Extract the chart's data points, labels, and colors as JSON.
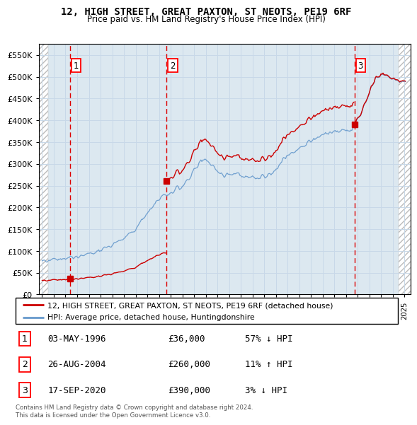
{
  "title": "12, HIGH STREET, GREAT PAXTON, ST NEOTS, PE19 6RF",
  "subtitle": "Price paid vs. HM Land Registry's House Price Index (HPI)",
  "ylabel_values": [
    0,
    50000,
    100000,
    150000,
    200000,
    250000,
    300000,
    350000,
    400000,
    450000,
    500000,
    550000
  ],
  "ylabel_labels": [
    "£0",
    "£50K",
    "£100K",
    "£150K",
    "£200K",
    "£250K",
    "£300K",
    "£350K",
    "£400K",
    "£450K",
    "£500K",
    "£550K"
  ],
  "ylim": [
    0,
    575000
  ],
  "xlim_start": 1993.7,
  "xlim_end": 2025.5,
  "sale_dates": [
    1996.37,
    2004.66,
    2020.72
  ],
  "sale_prices": [
    36000,
    260000,
    390000
  ],
  "sale_labels": [
    "1",
    "2",
    "3"
  ],
  "sale_info": [
    {
      "num": "1",
      "date": "03-MAY-1996",
      "price": "£36,000",
      "hpi": "57% ↓ HPI"
    },
    {
      "num": "2",
      "date": "26-AUG-2004",
      "price": "£260,000",
      "hpi": "11% ↑ HPI"
    },
    {
      "num": "3",
      "date": "17-SEP-2020",
      "price": "£390,000",
      "hpi": "3% ↓ HPI"
    }
  ],
  "legend_property": "12, HIGH STREET, GREAT PAXTON, ST NEOTS, PE19 6RF (detached house)",
  "legend_hpi": "HPI: Average price, detached house, Huntingdonshire",
  "copyright": "Contains HM Land Registry data © Crown copyright and database right 2024.\nThis data is licensed under the Open Government Licence v3.0.",
  "property_color": "#cc0000",
  "hpi_color": "#6699cc",
  "hatch_color": "#bbbbbb",
  "grid_color": "#c8d8e8",
  "bg_color": "#dce8f0"
}
